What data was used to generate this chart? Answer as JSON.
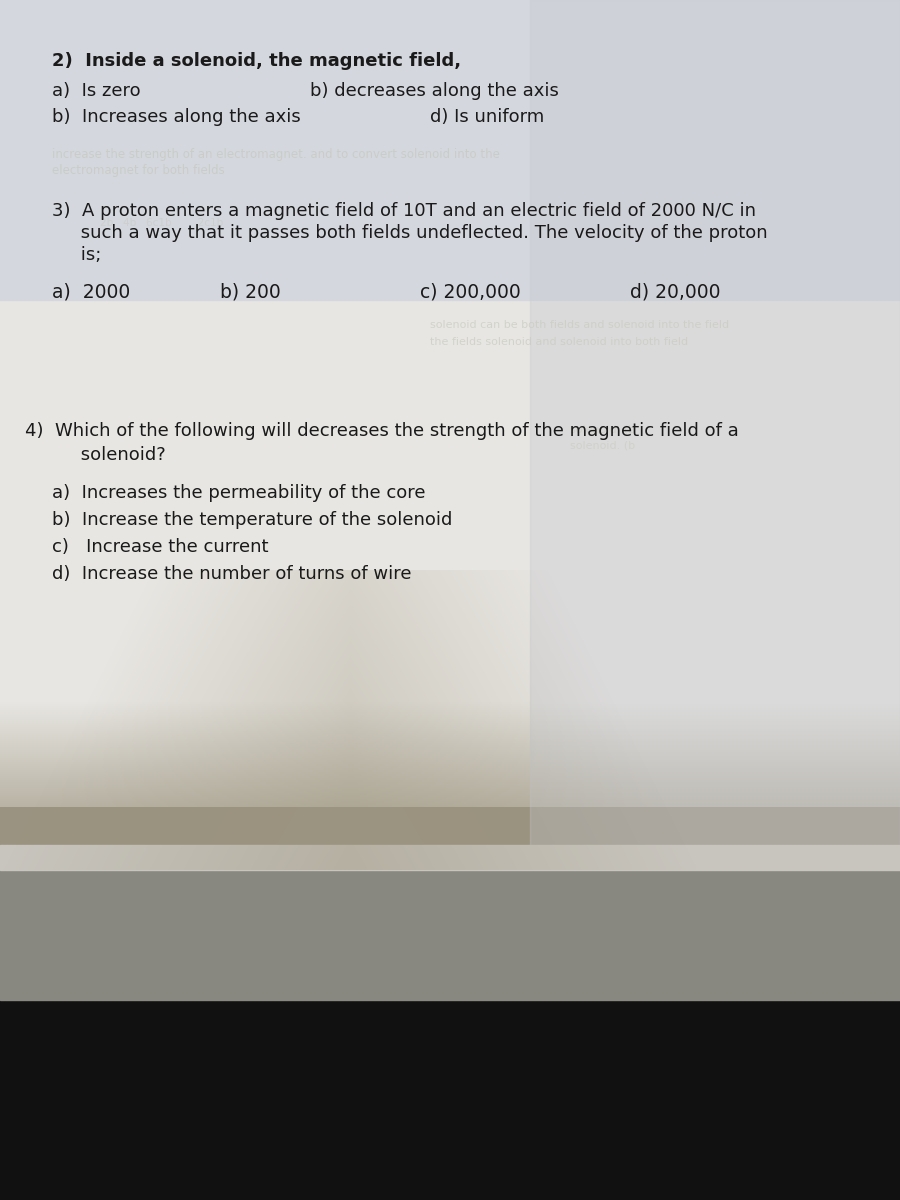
{
  "text_color": "#1a1a1a",
  "faded_color": "#c8cbc0",
  "q2_title": "2)  Inside a solenoid, the magnetic field,",
  "q2_a": "a)  Is zero",
  "q2_b_right": "b) decreases along the axis",
  "q2_b_left": "b)  Increases along the axis",
  "q2_d": "d) Is uniform",
  "q3_title_line1": "3)  A proton enters a magnetic field of 10T and an electric field of 2000 N/C in",
  "q3_title_line2": "     such a way that it passes both fields undeflected. The velocity of the proton",
  "q3_title_line3": "     is;",
  "q3_a": "a)  2000",
  "q3_b": "b) 200",
  "q3_c": "c) 200,000",
  "q3_d": "d) 20,000",
  "q4_title_line1": "4)  Which of the following will decreases the strength of the magnetic field of a",
  "q4_title_line2": "     solenoid?",
  "q4_a": "a)  Increases the permeability of the core",
  "q4_b": "b)  Increase the temperature of the solenoid",
  "q4_c": "c)   Increase the current",
  "q4_d": "d)  Increase the number of turns of wire",
  "font_size": 13.0
}
